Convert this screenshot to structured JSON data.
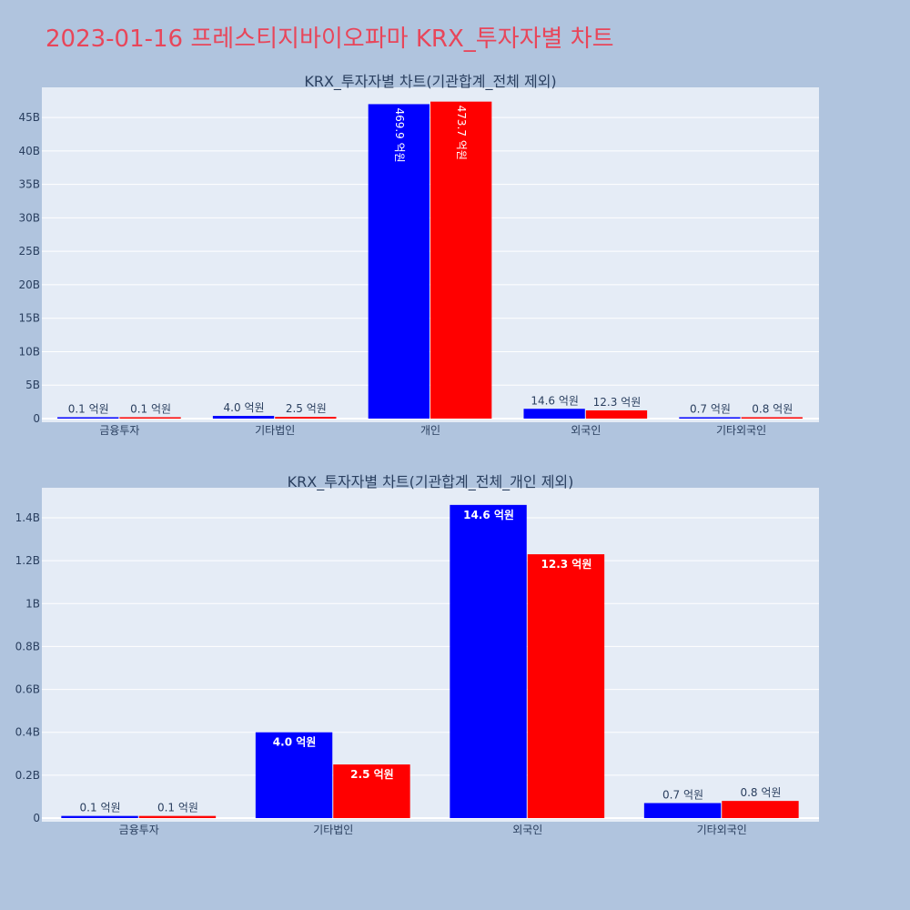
{
  "page": {
    "title": "2023-01-16 프레스티지바이오파마 KRX_투자자별 차트",
    "title_color": "#e8465a",
    "background": "#b0c4de"
  },
  "chart_data": [
    {
      "type": "bar",
      "title": "KRX_투자자별 차트(기관합계_전체 제외)",
      "categories": [
        "금융투자",
        "기타법인",
        "개인",
        "외국인",
        "기타외국인"
      ],
      "series": [
        {
          "color": "#0000ff",
          "values": [
            10000000,
            400000000,
            46990000000,
            1460000000,
            70000000
          ],
          "labels": [
            "0.1 억원",
            "4.0 억원",
            "469.9 억원",
            "14.6 억원",
            "0.7 억원"
          ]
        },
        {
          "color": "#ff0000",
          "values": [
            10000000,
            250000000,
            47370000000,
            1230000000,
            80000000
          ],
          "labels": [
            "0.1 억원",
            "2.5 억원",
            "473.7 억원",
            "12.3 억원",
            "0.8 억원"
          ]
        }
      ],
      "yticks": [
        "0",
        "5B",
        "10B",
        "15B",
        "20B",
        "25B",
        "30B",
        "35B",
        "40B",
        "45B"
      ],
      "ylim": [
        0,
        49500000000
      ],
      "xlabel": "",
      "ylabel": "",
      "grid": true
    },
    {
      "type": "bar",
      "title": "KRX_투자자별 차트(기관합계_전체_개인 제외)",
      "categories": [
        "금융투자",
        "기타법인",
        "외국인",
        "기타외국인"
      ],
      "series": [
        {
          "color": "#0000ff",
          "values": [
            10000000,
            400000000,
            1460000000,
            70000000
          ],
          "labels": [
            "0.1 억원",
            "4.0 억원",
            "14.6 억원",
            "0.7 억원"
          ]
        },
        {
          "color": "#ff0000",
          "values": [
            10000000,
            250000000,
            1230000000,
            80000000
          ],
          "labels": [
            "0.1 억원",
            "2.5 억원",
            "12.3 억원",
            "0.8 억원"
          ]
        }
      ],
      "yticks": [
        "0",
        "0.2B",
        "0.4B",
        "0.6B",
        "0.8B",
        "1B",
        "1.2B",
        "1.4B"
      ],
      "ylim": [
        0,
        1540000000
      ],
      "xlabel": "",
      "ylabel": "",
      "grid": true
    }
  ]
}
